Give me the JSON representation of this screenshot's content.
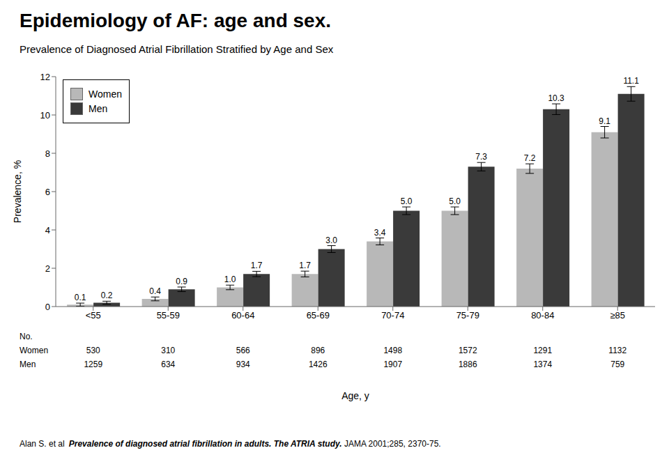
{
  "chart_data": {
    "type": "bar",
    "title": "Epidemiology of AF: age and sex.",
    "subtitle": "Prevalence of Diagnosed Atrial Fibrillation Stratified by Age and Sex",
    "categories": [
      "<55",
      "55-59",
      "60-64",
      "65-69",
      "70-74",
      "75-79",
      "80-84",
      "≥85"
    ],
    "series": [
      {
        "name": "Women",
        "color": "#b8b8b8",
        "values": [
          0.1,
          0.4,
          1.0,
          1.7,
          3.4,
          5.0,
          7.2,
          9.1
        ],
        "value_labels": [
          "0.1",
          "0.4",
          "1.0",
          "1.7",
          "3.4",
          "5.0",
          "7.2",
          "9.1"
        ],
        "errors": [
          0.08,
          0.1,
          0.12,
          0.15,
          0.18,
          0.2,
          0.25,
          0.3
        ]
      },
      {
        "name": "Men",
        "color": "#3a3a3a",
        "values": [
          0.2,
          0.9,
          1.7,
          3.0,
          5.0,
          7.3,
          10.3,
          11.1
        ],
        "value_labels": [
          "0.2",
          "0.9",
          "1.7",
          "3.0",
          "5.0",
          "7.3",
          "10.3",
          "11.1"
        ],
        "errors": [
          0.08,
          0.12,
          0.14,
          0.18,
          0.2,
          0.22,
          0.28,
          0.38
        ]
      }
    ],
    "ylabel": "Prevalence, %",
    "xlabel": "Age, y",
    "ylim": [
      0,
      12
    ],
    "yticks": [
      0,
      2,
      4,
      6,
      8,
      10,
      12
    ],
    "grid": false,
    "legend": "upper left",
    "data_labels": true,
    "table": {
      "header": "No.",
      "rows": [
        {
          "name": "Women",
          "values": [
            530,
            310,
            566,
            896,
            1498,
            1572,
            1291,
            1132
          ]
        },
        {
          "name": "Men",
          "values": [
            1259,
            634,
            934,
            1426,
            1907,
            1886,
            1374,
            759
          ]
        }
      ]
    },
    "footnote": [
      "Alan S. et al",
      "Prevalence of diagnosed atrial fibrillation in adults. The ATRIA study.",
      " JAMA 2001;285, 2370-75."
    ]
  }
}
